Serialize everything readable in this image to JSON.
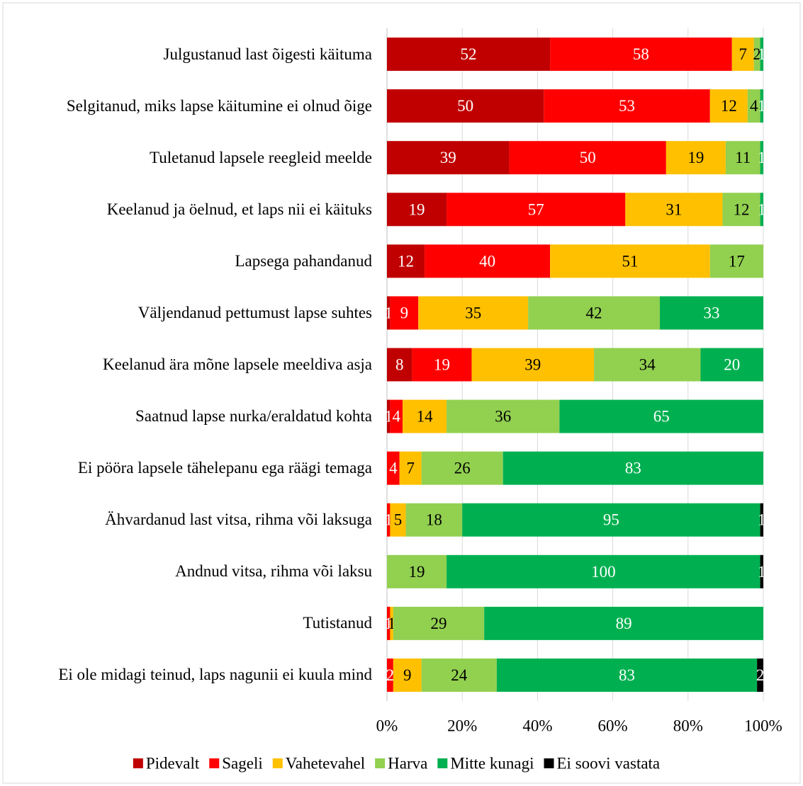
{
  "chart_data": {
    "type": "bar",
    "orientation": "horizontal",
    "stacked": "percent",
    "categories": [
      "Julgustanud last õigesti käituma",
      "Selgitanud, miks lapse käitumine ei olnud õige",
      "Tuletanud lapsele reegleid meelde",
      "Keelanud ja öelnud, et laps nii ei käituks",
      "Lapsega pahandanud",
      "Väljendanud pettumust lapse suhtes",
      "Keelanud ära mõne lapsele meeldiva asja",
      "Saatnud lapse nurka/eraldatud kohta",
      "Ei pööra lapsele tähelepanu ega räägi temaga",
      "Ähvardanud last vitsa, rihma või laksuga",
      "Andnud vitsa, rihma või laksu",
      "Tutistanud",
      "Ei ole midagi teinud, laps nagunii ei kuula mind"
    ],
    "series": [
      {
        "name": "Pidevalt",
        "color": "#c00000",
        "values": [
          52,
          50,
          39,
          19,
          12,
          1,
          8,
          1,
          null,
          null,
          null,
          null,
          null
        ]
      },
      {
        "name": "Sageli",
        "color": "#ff0000",
        "values": [
          58,
          53,
          50,
          57,
          40,
          9,
          19,
          4,
          4,
          1,
          null,
          1,
          2
        ]
      },
      {
        "name": "Vahetevahel",
        "color": "#ffc000",
        "values": [
          7,
          12,
          19,
          31,
          51,
          35,
          39,
          14,
          7,
          5,
          null,
          1,
          9
        ]
      },
      {
        "name": "Harva",
        "color": "#92d050",
        "values": [
          2,
          4,
          11,
          12,
          17,
          42,
          34,
          36,
          26,
          18,
          19,
          29,
          24
        ]
      },
      {
        "name": "Mitte kunagi",
        "color": "#00b050",
        "values": [
          1,
          1,
          1,
          1,
          null,
          33,
          20,
          65,
          83,
          95,
          100,
          89,
          83
        ]
      },
      {
        "name": "Ei soovi vastata",
        "color": "#000000",
        "values": [
          null,
          null,
          null,
          null,
          null,
          null,
          null,
          null,
          null,
          1,
          1,
          null,
          2
        ]
      }
    ],
    "xlim": [
      0,
      100
    ],
    "xticks": [
      {
        "value": 0,
        "label": "0%"
      },
      {
        "value": 20,
        "label": "20%"
      },
      {
        "value": 40,
        "label": "40%"
      },
      {
        "value": 60,
        "label": "60%"
      },
      {
        "value": 80,
        "label": "80%"
      },
      {
        "value": 100,
        "label": "100%"
      }
    ],
    "grid": true,
    "legend": "bottom"
  }
}
